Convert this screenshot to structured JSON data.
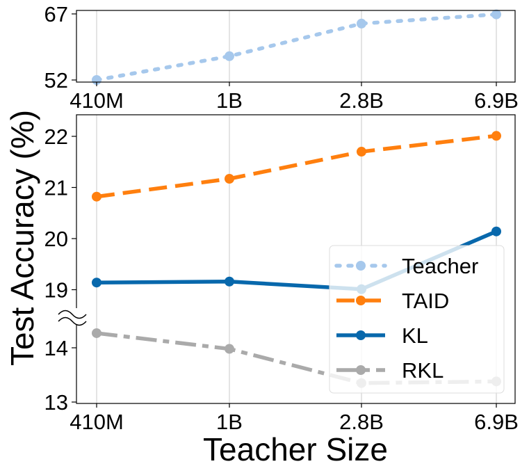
{
  "chart_data": {
    "type": "line",
    "categories": [
      "410M",
      "1B",
      "2.8B",
      "6.9B"
    ],
    "ylabel": "Test Accuracy (%)",
    "xlabel": "Teacher Size",
    "top_panel": {
      "ylim": [
        52,
        67
      ],
      "yticks": [
        "52",
        "67"
      ],
      "grid": "vertical"
    },
    "bottom_panel": {
      "ylim_upper": [
        19,
        22
      ],
      "ylim_lower": [
        13,
        14
      ],
      "yticks": [
        "13",
        "14",
        "19",
        "20",
        "21",
        "22"
      ],
      "axis_break": "between 14 and 19",
      "grid": "vertical"
    },
    "series": [
      {
        "name": "Teacher",
        "values": [
          52.0,
          57.4,
          64.8,
          66.9
        ],
        "color": "#a6c8ec",
        "style": "dotted",
        "panel": "top"
      },
      {
        "name": "TAID",
        "values": [
          20.82,
          21.17,
          21.7,
          22.01
        ],
        "color": "#ff7f0e",
        "style": "dashed",
        "panel": "bottom"
      },
      {
        "name": "KL",
        "values": [
          19.14,
          19.16,
          19.01,
          20.14
        ],
        "color": "#0868ac",
        "style": "solid",
        "panel": "bottom"
      },
      {
        "name": "RKL",
        "values": [
          14.27,
          13.98,
          13.35,
          13.38
        ],
        "color": "#aaaaaa",
        "style": "dashdot",
        "panel": "bottom"
      }
    ],
    "legend": {
      "placement": "lower-right"
    }
  }
}
